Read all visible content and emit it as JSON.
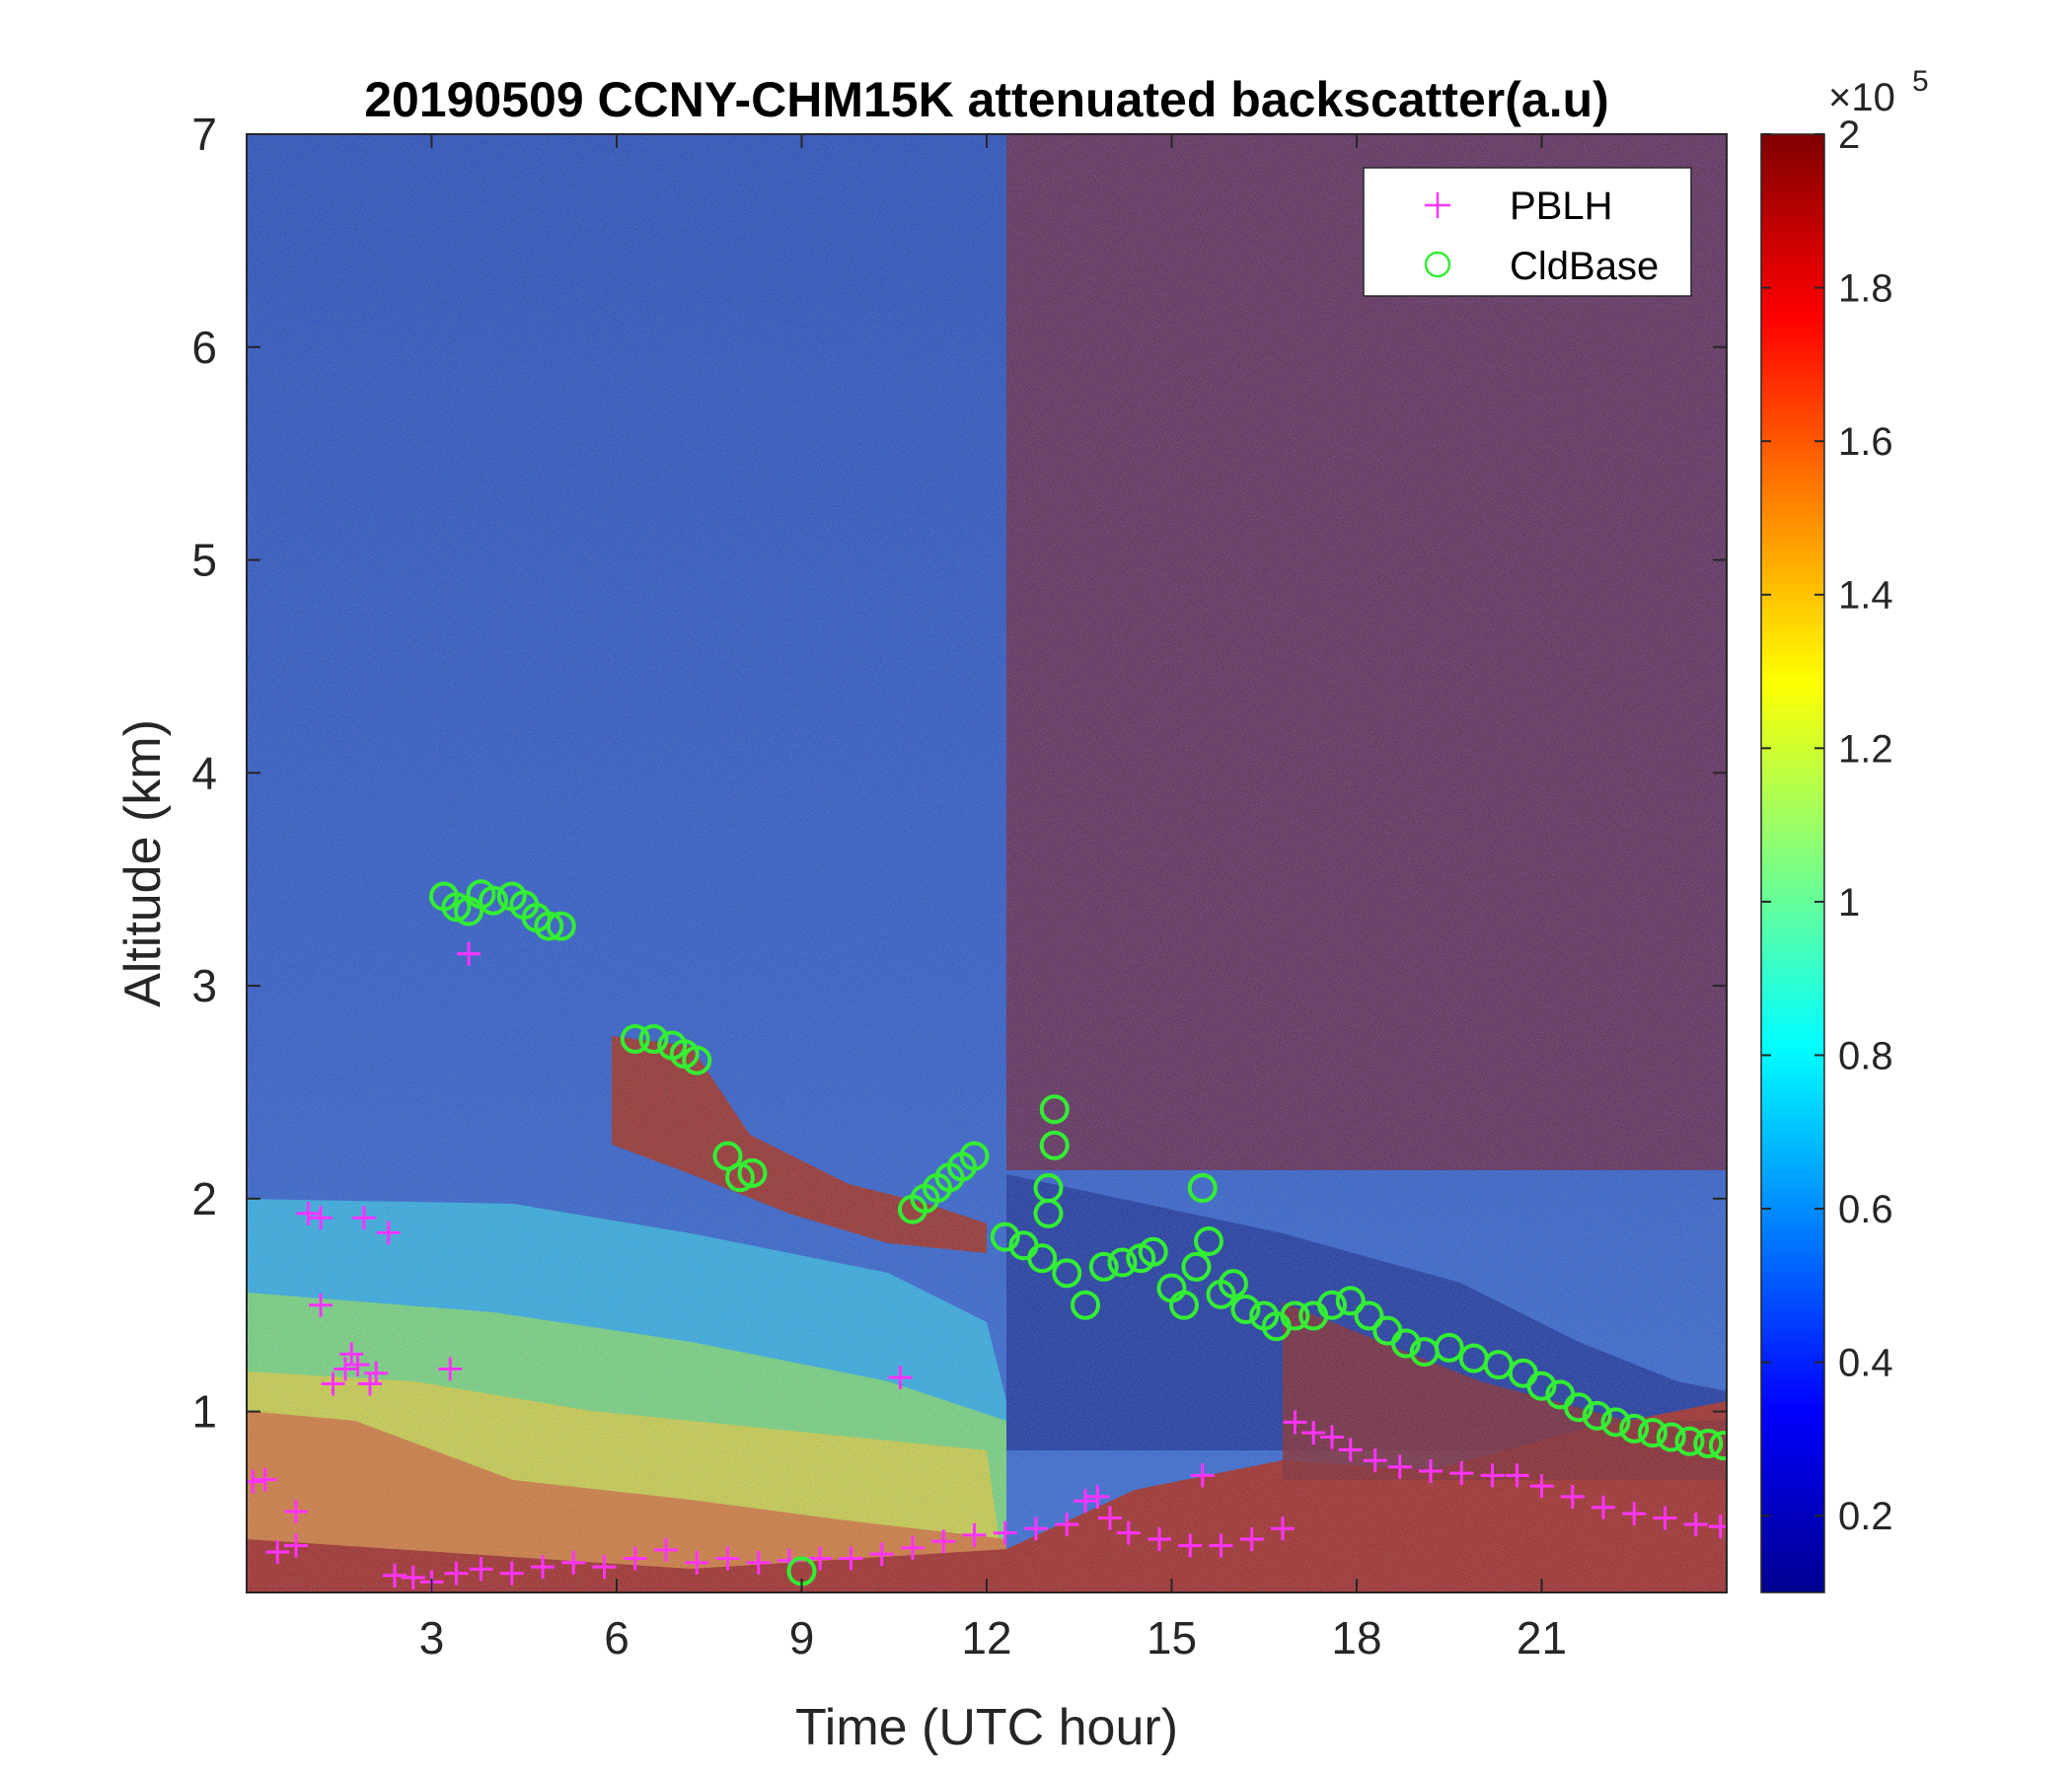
{
  "chart_data": {
    "type": "heatmap",
    "title": "20190509 CCNY-CHM15K attenuated backscatter(a.u)",
    "xlabel": "Time (UTC hour)",
    "ylabel": "Altitude (km)",
    "xlim": [
      0,
      24
    ],
    "ylim": [
      0.15,
      7
    ],
    "xticks": [
      "3",
      "6",
      "9",
      "12",
      "15",
      "18",
      "21"
    ],
    "yticks": [
      "1",
      "2",
      "3",
      "4",
      "5",
      "6",
      "7"
    ],
    "colorbar": {
      "range": [
        0.1,
        2.0
      ],
      "multiplier_base": "×10",
      "multiplier_exp": "5",
      "ticks": [
        "0.2",
        "0.4",
        "0.6",
        "0.8",
        "1",
        "1.2",
        "1.4",
        "1.6",
        "1.8",
        "2"
      ],
      "colormap": "jet"
    },
    "legend": {
      "placement": "top-right",
      "entries": [
        {
          "label": "PBLH",
          "marker": "plus",
          "color": "#ff33ff"
        },
        {
          "label": "CldBase",
          "marker": "circle",
          "color": "#33ee33"
        }
      ]
    },
    "series": [
      {
        "name": "PBLH",
        "points": [
          [
            0.1,
            0.67
          ],
          [
            0.3,
            0.68
          ],
          [
            0.5,
            0.34
          ],
          [
            0.8,
            0.37
          ],
          [
            0.8,
            0.53
          ],
          [
            1.0,
            1.93
          ],
          [
            1.2,
            1.91
          ],
          [
            1.2,
            1.5
          ],
          [
            1.4,
            1.13
          ],
          [
            1.6,
            1.2
          ],
          [
            1.7,
            1.27
          ],
          [
            1.8,
            1.22
          ],
          [
            1.9,
            1.91
          ],
          [
            2.0,
            1.13
          ],
          [
            2.1,
            1.18
          ],
          [
            2.3,
            1.84
          ],
          [
            2.4,
            0.23
          ],
          [
            2.7,
            0.22
          ],
          [
            3.0,
            0.2
          ],
          [
            3.3,
            1.2
          ],
          [
            3.4,
            0.24
          ],
          [
            3.6,
            3.15
          ],
          [
            3.8,
            0.26
          ],
          [
            4.3,
            0.24
          ],
          [
            4.8,
            0.27
          ],
          [
            5.3,
            0.29
          ],
          [
            5.8,
            0.27
          ],
          [
            6.3,
            0.31
          ],
          [
            6.8,
            0.35
          ],
          [
            7.3,
            0.29
          ],
          [
            7.8,
            0.31
          ],
          [
            8.3,
            0.29
          ],
          [
            8.8,
            0.3
          ],
          [
            9.3,
            0.31
          ],
          [
            9.8,
            0.31
          ],
          [
            10.3,
            0.33
          ],
          [
            10.6,
            1.16
          ],
          [
            10.8,
            0.36
          ],
          [
            11.3,
            0.39
          ],
          [
            11.8,
            0.42
          ],
          [
            12.3,
            0.43
          ],
          [
            12.8,
            0.45
          ],
          [
            13.3,
            0.47
          ],
          [
            13.6,
            0.58
          ],
          [
            13.8,
            0.6
          ],
          [
            14.0,
            0.5
          ],
          [
            14.3,
            0.43
          ],
          [
            14.8,
            0.4
          ],
          [
            15.3,
            0.37
          ],
          [
            15.5,
            0.7
          ],
          [
            15.8,
            0.37
          ],
          [
            16.3,
            0.4
          ],
          [
            16.8,
            0.45
          ],
          [
            17.0,
            0.95
          ],
          [
            17.3,
            0.9
          ],
          [
            17.6,
            0.88
          ],
          [
            17.9,
            0.82
          ],
          [
            18.3,
            0.77
          ],
          [
            18.7,
            0.74
          ],
          [
            19.2,
            0.72
          ],
          [
            19.7,
            0.71
          ],
          [
            20.2,
            0.7
          ],
          [
            20.6,
            0.7
          ],
          [
            21.0,
            0.65
          ],
          [
            21.5,
            0.6
          ],
          [
            22.0,
            0.55
          ],
          [
            22.5,
            0.52
          ],
          [
            23.0,
            0.5
          ],
          [
            23.5,
            0.47
          ],
          [
            23.9,
            0.46
          ]
        ]
      },
      {
        "name": "CldBase",
        "points": [
          [
            3.2,
            3.42
          ],
          [
            3.4,
            3.37
          ],
          [
            3.6,
            3.35
          ],
          [
            3.8,
            3.43
          ],
          [
            4.0,
            3.4
          ],
          [
            4.3,
            3.42
          ],
          [
            4.5,
            3.38
          ],
          [
            4.7,
            3.32
          ],
          [
            4.9,
            3.28
          ],
          [
            5.1,
            3.28
          ],
          [
            6.3,
            2.75
          ],
          [
            6.6,
            2.75
          ],
          [
            6.9,
            2.72
          ],
          [
            7.1,
            2.68
          ],
          [
            7.3,
            2.65
          ],
          [
            7.8,
            2.2
          ],
          [
            8.0,
            2.1
          ],
          [
            8.2,
            2.12
          ],
          [
            9.0,
            0.25
          ],
          [
            10.8,
            1.95
          ],
          [
            11.0,
            2.0
          ],
          [
            11.2,
            2.05
          ],
          [
            11.4,
            2.1
          ],
          [
            11.6,
            2.15
          ],
          [
            11.8,
            2.2
          ],
          [
            12.3,
            1.82
          ],
          [
            12.6,
            1.78
          ],
          [
            12.9,
            1.72
          ],
          [
            13.0,
            1.93
          ],
          [
            13.0,
            2.05
          ],
          [
            13.1,
            2.25
          ],
          [
            13.1,
            2.42
          ],
          [
            13.3,
            1.65
          ],
          [
            13.6,
            1.5
          ],
          [
            13.9,
            1.68
          ],
          [
            14.2,
            1.7
          ],
          [
            14.5,
            1.72
          ],
          [
            14.7,
            1.75
          ],
          [
            15.0,
            1.58
          ],
          [
            15.2,
            1.5
          ],
          [
            15.4,
            1.68
          ],
          [
            15.5,
            2.05
          ],
          [
            15.6,
            1.8
          ],
          [
            15.8,
            1.55
          ],
          [
            16.0,
            1.6
          ],
          [
            16.2,
            1.48
          ],
          [
            16.5,
            1.45
          ],
          [
            16.7,
            1.4
          ],
          [
            17.0,
            1.45
          ],
          [
            17.3,
            1.45
          ],
          [
            17.6,
            1.5
          ],
          [
            17.9,
            1.52
          ],
          [
            18.2,
            1.45
          ],
          [
            18.5,
            1.38
          ],
          [
            18.8,
            1.32
          ],
          [
            19.1,
            1.28
          ],
          [
            19.5,
            1.3
          ],
          [
            19.9,
            1.25
          ],
          [
            20.3,
            1.22
          ],
          [
            20.7,
            1.18
          ],
          [
            21.0,
            1.12
          ],
          [
            21.3,
            1.08
          ],
          [
            21.6,
            1.02
          ],
          [
            21.9,
            0.98
          ],
          [
            22.2,
            0.95
          ],
          [
            22.5,
            0.92
          ],
          [
            22.8,
            0.9
          ],
          [
            23.1,
            0.88
          ],
          [
            23.4,
            0.86
          ],
          [
            23.7,
            0.85
          ],
          [
            23.95,
            0.84
          ]
        ]
      }
    ]
  }
}
